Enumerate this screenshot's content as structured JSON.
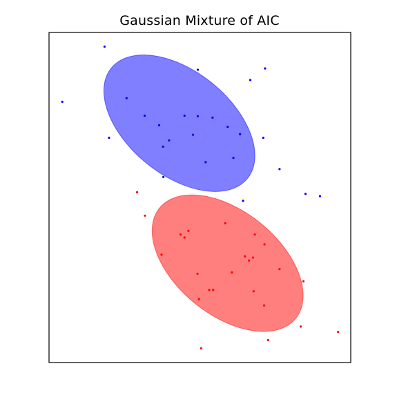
{
  "chart_data": {
    "type": "scatter",
    "title": "Gaussian Mixture of AIC",
    "xlabel": "",
    "ylabel": "",
    "xlim": [
      0,
      10
    ],
    "ylim": [
      0,
      10
    ],
    "grid": false,
    "legend": "none",
    "axis_ticks": "hidden",
    "colors": {
      "blue_points": "#0000ff",
      "red_points": "#ff0000",
      "blue_ellipse": "#8080ff",
      "red_ellipse": "#ff8080",
      "frame": "#000000"
    },
    "ellipses": [
      {
        "name": "",
        "color": "#0000ff",
        "cx": 4.32,
        "cy": 7.25,
        "width": 5.63,
        "height": 3.24,
        "angle_deg": -34
      },
      {
        "name": "",
        "color": "#ff0000",
        "cx": 5.92,
        "cy": 3.01,
        "width": 5.63,
        "height": 3.24,
        "angle_deg": -34
      }
    ],
    "series": [
      {
        "name": "",
        "color": "#0000ff",
        "points": [
          [
            1.84,
            9.57
          ],
          [
            0.44,
            7.9
          ],
          [
            4.93,
            8.87
          ],
          [
            7.16,
            8.91
          ],
          [
            6.67,
            8.56
          ],
          [
            2.57,
            8.01
          ],
          [
            1.99,
            6.81
          ],
          [
            3.17,
            7.48
          ],
          [
            4.49,
            7.48
          ],
          [
            4.93,
            7.46
          ],
          [
            5.42,
            7.42
          ],
          [
            3.65,
            7.19
          ],
          [
            5.92,
            7.14
          ],
          [
            4.77,
            6.9
          ],
          [
            6.33,
            6.92
          ],
          [
            7.1,
            6.81
          ],
          [
            3.98,
            6.73
          ],
          [
            3.78,
            6.54
          ],
          [
            6.11,
            6.2
          ],
          [
            5.19,
            6.07
          ],
          [
            7.64,
            5.86
          ],
          [
            3.79,
            5.62
          ],
          [
            8.5,
            5.11
          ],
          [
            8.98,
            5.04
          ],
          [
            6.43,
            4.9
          ]
        ]
      },
      {
        "name": "",
        "color": "#ff0000",
        "points": [
          [
            2.92,
            5.16
          ],
          [
            3.18,
            4.45
          ],
          [
            5.84,
            4.22
          ],
          [
            4.62,
            3.99
          ],
          [
            4.36,
            3.88
          ],
          [
            6.82,
            3.88
          ],
          [
            4.49,
            3.79
          ],
          [
            7.14,
            3.58
          ],
          [
            3.73,
            3.27
          ],
          [
            6.49,
            3.22
          ],
          [
            6.76,
            3.18
          ],
          [
            6.63,
            3.09
          ],
          [
            7.64,
            2.83
          ],
          [
            6.06,
            2.73
          ],
          [
            4.92,
            2.69
          ],
          [
            8.43,
            2.46
          ],
          [
            5.31,
            2.2
          ],
          [
            5.44,
            2.2
          ],
          [
            6.78,
            2.16
          ],
          [
            4.97,
            1.92
          ],
          [
            7.13,
            1.73
          ],
          [
            8.34,
            1.09
          ],
          [
            9.58,
            0.93
          ],
          [
            7.26,
            0.68
          ],
          [
            5.04,
            0.43
          ]
        ]
      }
    ]
  }
}
